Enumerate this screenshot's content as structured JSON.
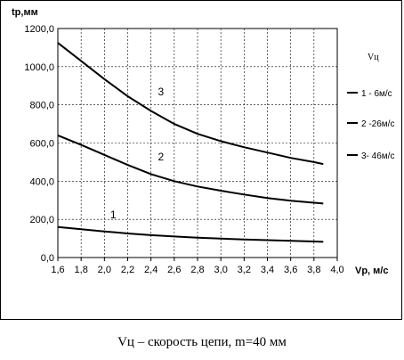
{
  "chart_data": {
    "type": "line",
    "ylabel": "tp,мм",
    "xlabel": "Vp, м/с",
    "xlim": [
      1.6,
      4.0
    ],
    "ylim": [
      0,
      1200
    ],
    "x_ticks": [
      "1,6",
      "1,8",
      "2,0",
      "2,2",
      "2,4",
      "2,6",
      "2,8",
      "3,0",
      "3,2",
      "3,4",
      "3,6",
      "3,8",
      "4,0"
    ],
    "y_ticks": [
      "0,0",
      "200,0",
      "400,0",
      "600,0",
      "800,0",
      "1000,0",
      "1200,0"
    ],
    "grid": true,
    "legend_title": "Vц",
    "legend_position": "right",
    "series": [
      {
        "name": "1 - 6м/с",
        "curve_label": "1",
        "x": [
          1.6,
          1.8,
          2.0,
          2.2,
          2.4,
          2.6,
          2.8,
          3.0,
          3.2,
          3.4,
          3.6,
          3.8,
          3.88
        ],
        "y": [
          160,
          148,
          137,
          126,
          117,
          110,
          104,
          99,
          95,
          91,
          88,
          84,
          82
        ]
      },
      {
        "name": "2 -26м/с",
        "curve_label": "2",
        "x": [
          1.6,
          1.8,
          2.0,
          2.2,
          2.4,
          2.6,
          2.8,
          3.0,
          3.2,
          3.4,
          3.6,
          3.8,
          3.88
        ],
        "y": [
          640,
          590,
          538,
          485,
          437,
          400,
          372,
          350,
          330,
          312,
          298,
          287,
          283
        ]
      },
      {
        "name": "3- 46м/с",
        "curve_label": "3",
        "x": [
          1.6,
          1.8,
          2.0,
          2.2,
          2.4,
          2.6,
          2.8,
          3.0,
          3.2,
          3.4,
          3.6,
          3.8,
          3.88
        ],
        "y": [
          1125,
          1030,
          935,
          845,
          768,
          700,
          648,
          610,
          578,
          550,
          522,
          500,
          490
        ]
      }
    ]
  },
  "caption": "Vц – скорость цепи, m=40 мм"
}
